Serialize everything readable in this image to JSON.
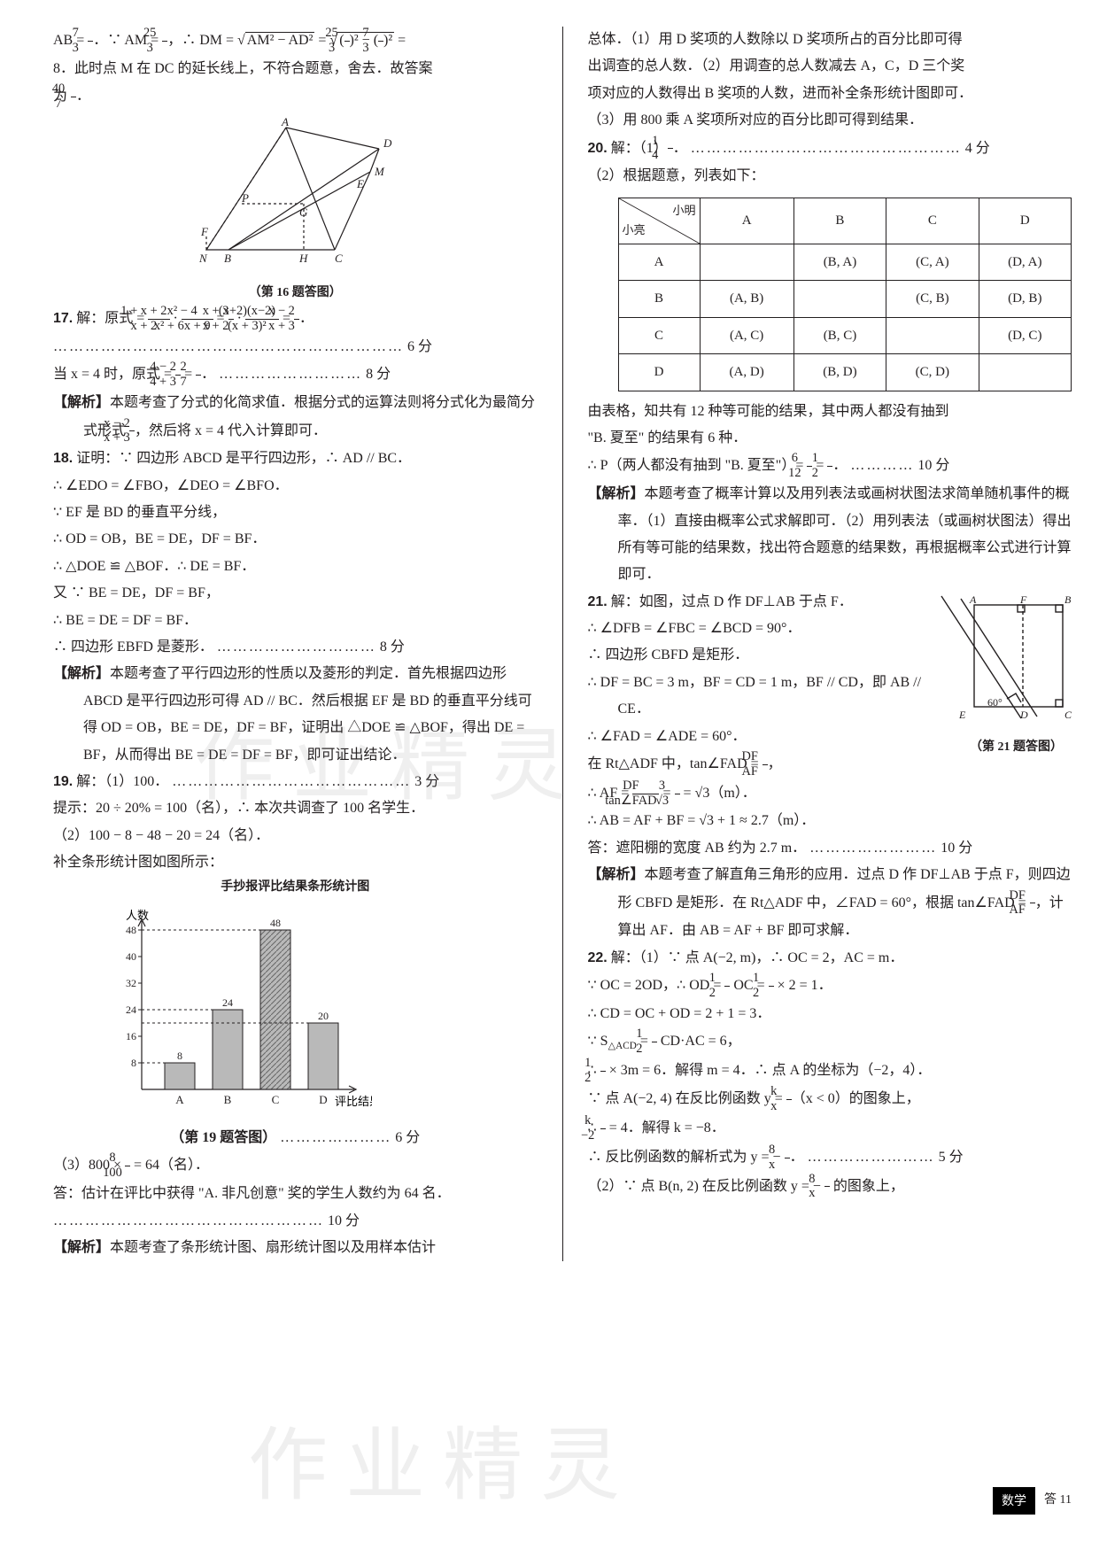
{
  "left": {
    "p16_line1": "AB = 7/3．∵ AM = 25/3，∴ DM = √(AM² − AD²) = √((25/3)² − (7/3)²) =",
    "p16_line2": "8．此时点 M 在 DC 的延长线上，不符合题意，舍去．故答案",
    "p16_line3": "为 40/7．",
    "p16_caption": "（第 16 题答图）",
    "p16_labels": [
      "A",
      "D",
      "M",
      "E",
      "G",
      "P",
      "F",
      "N",
      "B",
      "H",
      "C"
    ],
    "q17_num": "17.",
    "q17_line1": "解：原式 = (1 + x + 2)/(x + 2) · (x² − 4)/(x² + 6x + 9) = (x + 3)/(x + 2) · ((x+2)(x−2))/((x+3)²) = (x − 2)/(x + 3)．",
    "q17_dots1": "…………………………………………………………",
    "q17_score1": "6 分",
    "q17_line2": "当 x = 4 时，原式 = (4 − 2)/(4 + 3) = 2/7．",
    "q17_dots2": "………………………",
    "q17_score2": "8 分",
    "q17_ana_label": "【解析】",
    "q17_ana": "本题考查了分式的化简求值．根据分式的运算法则将分式化为最简分式形式 (x−2)/(x+3)，然后将 x = 4 代入计算即可．",
    "q18_num": "18.",
    "q18_l1": "证明：∵ 四边形 ABCD 是平行四边形，∴ AD // BC．",
    "q18_l2": "∴ ∠EDO = ∠FBO，∠DEO = ∠BFO．",
    "q18_l3": "∵ EF 是 BD 的垂直平分线，",
    "q18_l4": "∴ OD = OB，BE = DE，DF = BF．",
    "q18_l5": "∴ △DOE ≌ △BOF．∴ DE = BF．",
    "q18_l6": "又 ∵ BE = DE，DF = BF，",
    "q18_l7": "∴ BE = DE = DF = BF．",
    "q18_l8": "∴ 四边形 EBFD 是菱形．",
    "q18_score": "8 分",
    "q18_ana_label": "【解析】",
    "q18_ana": "本题考查了平行四边形的性质以及菱形的判定．首先根据四边形 ABCD 是平行四边形可得 AD // BC．然后根据 EF 是 BD 的垂直平分线可得 OD = OB，BE = DE，DF = BF，证明出 △DOE ≌ △BOF，得出 DE = BF，从而得出 BE = DE = DF = BF，即可证出结论．",
    "q19_num": "19.",
    "q19_l1": "解：（1）100．",
    "q19_dots1": "………………………………………",
    "q19_score1": "3 分",
    "q19_l2": "提示：20 ÷ 20% = 100（名），∴ 本次共调查了 100 名学生．",
    "q19_l3": "（2）100 − 8 − 48 − 20 = 24（名）．",
    "q19_l4": "补全条形统计图如图所示：",
    "q19_chart_title": "手抄报评比结果条形统计图",
    "q19_chart": {
      "type": "bar",
      "ylabel": "人数",
      "xlabel": "评比结果",
      "categories": [
        "A",
        "B",
        "C",
        "D"
      ],
      "values": [
        8,
        24,
        48,
        20
      ],
      "value_labels": [
        "8",
        "24",
        "48",
        "20"
      ],
      "ylim": [
        0,
        48
      ],
      "yticks": [
        8,
        16,
        24,
        32,
        40,
        48
      ],
      "bar_color": "#b9b9b9",
      "bar_c_pattern": true,
      "axis_color": "#231f20",
      "bg": "#ffffff",
      "label_fontsize": 12
    },
    "q19_caption": "（第 19 题答图）",
    "q19_dots2": "…………………",
    "q19_score2": "6 分",
    "q19_l5": "（3）800 × 8/100 = 64（名）．",
    "q19_l6": "答：估计在评比中获得 \"A. 非凡创意\" 奖的学生人数约为 64 名．",
    "q19_dots3": "……………………………………………",
    "q19_score3": "10 分",
    "q19_ana_label": "【解析】",
    "q19_ana": "本题考查了条形统计图、扇形统计图以及用样本估计"
  },
  "right": {
    "cont1": "总体．（1）用 D 奖项的人数除以 D 奖项所占的百分比即可得",
    "cont2": "出调查的总人数．（2）用调查的总人数减去 A，C，D 三个奖",
    "cont3": "项对应的人数得出 B 奖项的人数，进而补全条形统计图即可．",
    "cont4": "（3）用 800 乘 A 奖项所对应的百分比即可得到结果．",
    "q20_num": "20.",
    "q20_l1": "解：（1）1/4．",
    "q20_dots1": "……………………………………………",
    "q20_score1": "4 分",
    "q20_l2": "（2）根据题意，列表如下：",
    "q20_table": {
      "diag_top": "小明",
      "diag_bot": "小亮",
      "cols": [
        "A",
        "B",
        "C",
        "D"
      ],
      "rows": [
        "A",
        "B",
        "C",
        "D"
      ],
      "cells": [
        [
          "",
          "(B, A)",
          "(C, A)",
          "(D, A)"
        ],
        [
          "(A, B)",
          "",
          "(C, B)",
          "(D, B)"
        ],
        [
          "(A, C)",
          "(B, C)",
          "",
          "(D, C)"
        ],
        [
          "(A, D)",
          "(B, D)",
          "(C, D)",
          ""
        ]
      ]
    },
    "q20_l3": "由表格，知共有 12 种等可能的结果，其中两人都没有抽到",
    "q20_l4": "\"B. 夏至\" 的结果有 6 种．",
    "q20_l5": "∴ P（两人都没有抽到 \"B. 夏至\"）= 6/12 = 1/2．",
    "q20_dots2": "…………",
    "q20_score2": "10 分",
    "q20_ana_label": "【解析】",
    "q20_ana": "本题考查了概率计算以及用列表法或画树状图法求简单随机事件的概率．（1）直接由概率公式求解即可．（2）用列表法（或画树状图法）得出所有等可能的结果数，找出符合题意的结果数，再根据概率公式进行计算即可．",
    "q21_num": "21.",
    "q21_l1": "解：如图，过点 D 作 DF⊥AB 于点 F．",
    "q21_l2": "∴ ∠DFB = ∠FBC = ∠BCD = 90°．",
    "q21_l3": "∴ 四边形 CBFD 是矩形．",
    "q21_l4": "∴ DF = BC = 3 m，BF = CD = 1 m，BF // CD，即 AB // CE．",
    "q21_l5": "∴ ∠FAD = ∠ADE = 60°．",
    "q21_l6": "在 Rt△ADF 中，tan∠FAD = DF / AF，",
    "q21_l7": "∴ AF = DF / tan∠FAD = 3 / √3 = √3（m）．",
    "q21_l8": "∴ AB = AF + BF = √3 + 1 ≈ 2.7（m）．",
    "q21_l9": "答：遮阳棚的宽度 AB 约为 2.7 m．",
    "q21_dots": "……………………",
    "q21_score": "10 分",
    "q21_caption": "（第 21 题答图）",
    "q21_labels": [
      "A",
      "F",
      "B",
      "E",
      "D",
      "C"
    ],
    "q21_angle": "60°",
    "q21_ana_label": "【解析】",
    "q21_ana": "本题考查了解直角三角形的应用．过点 D 作 DF⊥AB 于点 F，则四边形 CBFD 是矩形．在 Rt△ADF 中，∠FAD = 60°，根据 tan∠FAD = DF/AF，计算出 AF．由 AB = AF + BF 即可求解．",
    "q22_num": "22.",
    "q22_l1": "解：（1）∵ 点 A(−2, m)，∴ OC = 2，AC = m．",
    "q22_l2": "∵ OC = 2OD，∴ OD = ½ OC = ½ × 2 = 1．",
    "q22_l3": "∴ CD = OC + OD = 2 + 1 = 3．",
    "q22_l4": "∵ S△ACD = ½ CD·AC = 6，",
    "q22_l5": "∴ ½ × 3m = 6．解得 m = 4．∴ 点 A 的坐标为（−2，4）．",
    "q22_l6": "∵ 点 A(−2, 4) 在反比例函数 y = k/x（x < 0）的图象上，",
    "q22_l7": "∴ k/(−2) = 4．解得 k = −8．",
    "q22_l8": "∴ 反比例函数的解析式为 y = −8/x．",
    "q22_dots": "……………………",
    "q22_score": "5 分",
    "q22_l9": "（2）∵ 点 B(n, 2) 在反比例函数 y = −8/x 的图象上，"
  },
  "footer": {
    "subject": "数学",
    "page": "答 11"
  },
  "watermarks": [
    "作业精灵",
    "作业精灵"
  ]
}
